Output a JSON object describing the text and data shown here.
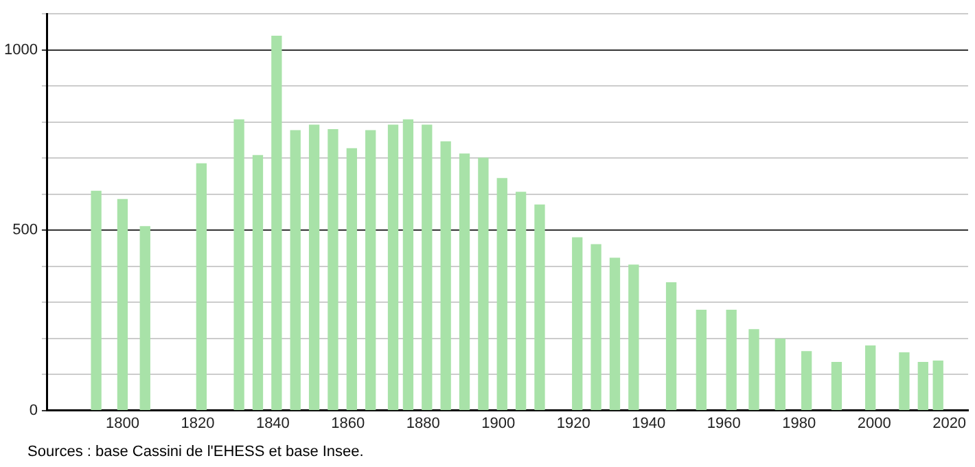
{
  "chart_data": {
    "type": "bar",
    "x": [
      1793,
      1800,
      1806,
      1821,
      1831,
      1836,
      1841,
      1846,
      1851,
      1856,
      1861,
      1866,
      1872,
      1876,
      1881,
      1886,
      1891,
      1896,
      1901,
      1906,
      1911,
      1921,
      1926,
      1931,
      1936,
      1946,
      1954,
      1962,
      1968,
      1975,
      1982,
      1990,
      1999,
      2008,
      2013,
      2017
    ],
    "values": [
      608,
      585,
      510,
      684,
      806,
      707,
      1038,
      776,
      791,
      779,
      726,
      776,
      791,
      806,
      791,
      745,
      711,
      700,
      643,
      605,
      570,
      479,
      460,
      422,
      403,
      354,
      278,
      278,
      224,
      198,
      163,
      133,
      179,
      160,
      133,
      137
    ],
    "color": "#a8e2a8",
    "xlim": [
      1780,
      2025
    ],
    "xticks": [
      1800,
      1820,
      1840,
      1860,
      1880,
      1900,
      1920,
      1940,
      1960,
      1980,
      2000,
      2020
    ],
    "ylim": [
      0,
      1100
    ],
    "yticks": [
      0,
      {
        "value": 100,
        "label": null
      },
      {
        "value": 200,
        "label": null
      },
      {
        "value": 300,
        "label": null
      },
      {
        "value": 400,
        "label": null
      },
      500,
      {
        "value": 600,
        "label": null
      },
      {
        "value": 700,
        "label": null
      },
      {
        "value": 800,
        "label": null
      },
      {
        "value": 900,
        "label": null
      },
      1000,
      {
        "value": 1100,
        "label": null
      }
    ],
    "grid": "y",
    "annotations": [
      "Sources : base Cassini de l'EHESS et base Insee."
    ]
  }
}
